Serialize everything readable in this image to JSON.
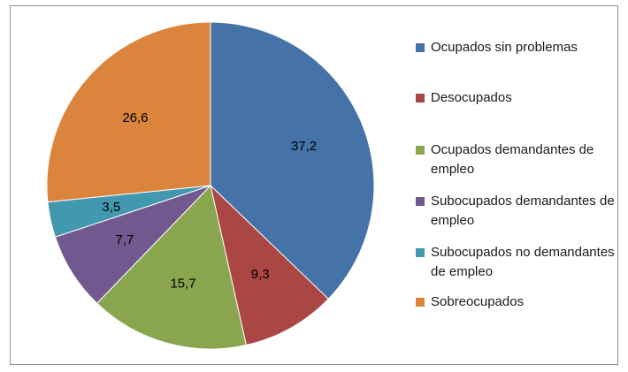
{
  "chart_data": {
    "type": "pie",
    "title": "",
    "legend_position": "right",
    "categories": [
      "Ocupados sin problemas",
      "Desocupados",
      "Ocupados demandantes de empleo",
      "Subocupados demandantes de empleo",
      "Subocupados no demandantes de empleo",
      "Sobreocupados"
    ],
    "values": [
      37.2,
      9.3,
      15.7,
      7.7,
      3.5,
      26.6
    ],
    "value_labels": [
      "37,2",
      "9,3",
      "15,7",
      "7,7",
      "3,5",
      "26,6"
    ],
    "colors": [
      "#4572a7",
      "#aa4643",
      "#89a54e",
      "#71588f",
      "#4198af",
      "#db843d"
    ]
  },
  "legend": {
    "items": [
      {
        "label": "Ocupados sin problemas",
        "color": "#4572a7"
      },
      {
        "label": "Desocupados",
        "color": "#aa4643"
      },
      {
        "label": "Ocupados demandantes de empleo",
        "color": "#89a54e"
      },
      {
        "label": "Subocupados demandantes de empleo",
        "color": "#71588f"
      },
      {
        "label": "Subocupados no demandantes de empleo",
        "color": "#4198af"
      },
      {
        "label": "Sobreocupados",
        "color": "#db843d"
      }
    ]
  }
}
